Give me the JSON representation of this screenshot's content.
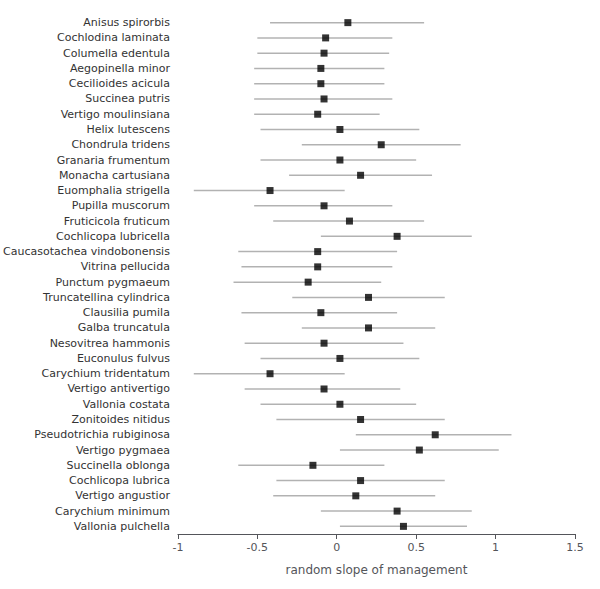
{
  "chart_data": {
    "type": "scatter",
    "orientation": "horizontal",
    "marker": "square",
    "color": "black",
    "grid": false,
    "xlabel": "random slope of management",
    "categories": [
      "Anisus spirorbis",
      "Cochlodina laminata",
      "Columella edentula",
      "Aegopinella minor",
      "Cecilioides acicula",
      "Succinea putris",
      "Vertigo moulinsiana",
      "Helix lutescens",
      "Chondrula tridens",
      "Granaria frumentum",
      "Monacha cartusiana",
      "Euomphalia strigella",
      "Pupilla muscorum",
      "Fruticicola fruticum",
      "Cochlicopa lubricella",
      "Caucasotachea vindobonensis",
      "Vitrina pellucida",
      "Punctum pygmaeum",
      "Truncatellina cylindrica",
      "Clausilia pumila",
      "Galba truncatula",
      "Nesovitrea hammonis",
      "Euconulus fulvus",
      "Carychium tridentatum",
      "Vertigo antivertigo",
      "Vallonia costata",
      "Zonitoides nitidus",
      "Pseudotrichia rubiginosa",
      "Vertigo pygmaea",
      "Succinella oblonga",
      "Cochlicopa lubrica",
      "Vertigo angustior",
      "Carychium minimum",
      "Vallonia pulchella"
    ],
    "values": [
      0.07,
      -0.07,
      -0.08,
      -0.1,
      -0.1,
      -0.08,
      -0.12,
      0.02,
      0.28,
      0.02,
      0.15,
      -0.42,
      -0.08,
      0.08,
      0.38,
      -0.12,
      -0.12,
      -0.18,
      0.2,
      -0.1,
      0.2,
      -0.08,
      0.02,
      -0.42,
      -0.08,
      0.02,
      0.15,
      0.62,
      0.52,
      -0.15,
      0.15,
      0.12,
      0.38,
      0.42
    ],
    "ci_low": [
      -0.42,
      -0.5,
      -0.5,
      -0.52,
      -0.52,
      -0.52,
      -0.52,
      -0.48,
      -0.22,
      -0.48,
      -0.3,
      -0.9,
      -0.52,
      -0.4,
      -0.1,
      -0.62,
      -0.6,
      -0.65,
      -0.28,
      -0.6,
      -0.22,
      -0.58,
      -0.48,
      -0.9,
      -0.58,
      -0.48,
      -0.38,
      0.12,
      0.02,
      -0.62,
      -0.38,
      -0.4,
      -0.1,
      0.02
    ],
    "ci_high": [
      0.55,
      0.35,
      0.33,
      0.3,
      0.3,
      0.35,
      0.27,
      0.52,
      0.78,
      0.5,
      0.6,
      0.05,
      0.35,
      0.55,
      0.85,
      0.38,
      0.35,
      0.28,
      0.68,
      0.38,
      0.62,
      0.42,
      0.52,
      0.05,
      0.4,
      0.5,
      0.68,
      1.1,
      1.02,
      0.3,
      0.68,
      0.62,
      0.85,
      0.82
    ],
    "xlim": [
      -1,
      1.5
    ],
    "xticks": [
      -1,
      -0.5,
      0,
      0.5,
      1,
      1.5
    ]
  }
}
